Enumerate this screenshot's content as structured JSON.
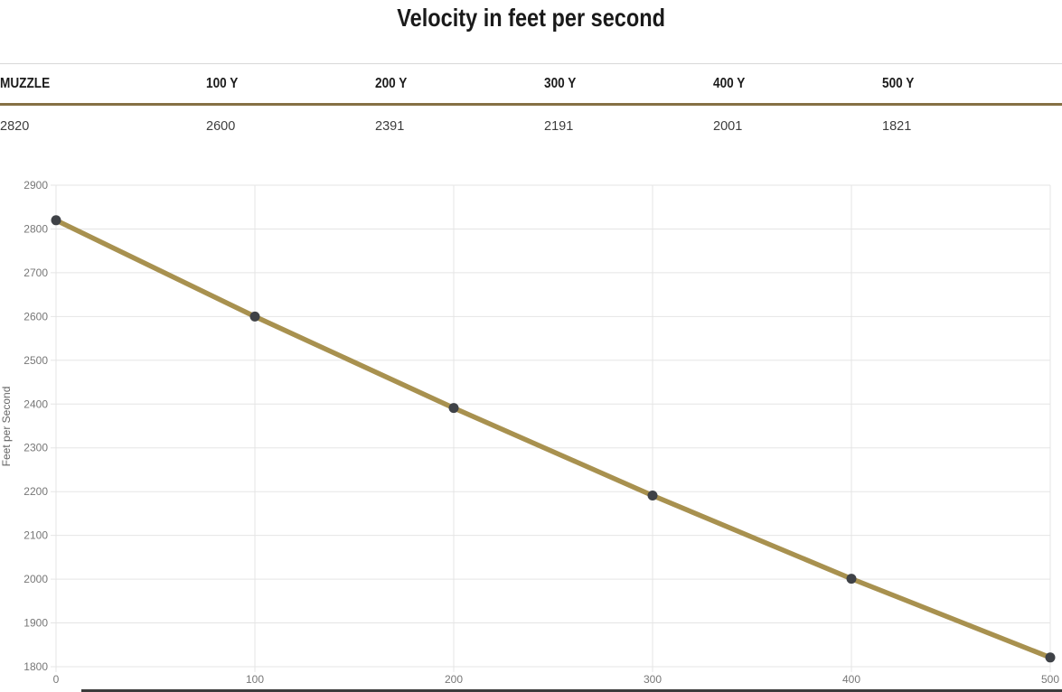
{
  "title": "Velocity in feet per second",
  "table": {
    "columns": [
      {
        "header": "MUZZLE",
        "value": "2820"
      },
      {
        "header": "100 Y",
        "value": "2600"
      },
      {
        "header": "200 Y",
        "value": "2391"
      },
      {
        "header": "300 Y",
        "value": "2191"
      },
      {
        "header": "400 Y",
        "value": "2001"
      },
      {
        "header": "500 Y",
        "value": "1821"
      }
    ]
  },
  "chart_data": {
    "type": "line",
    "title": "Velocity in feet per second",
    "series": [
      {
        "name": "Velocity",
        "x": [
          0,
          100,
          200,
          300,
          400,
          500
        ],
        "values": [
          2820,
          2600,
          2391,
          2191,
          2001,
          1821
        ]
      }
    ],
    "xlabel": "",
    "ylabel": "Feet per Second",
    "xticks": [
      0,
      100,
      200,
      300,
      400,
      500
    ],
    "ylim": [
      1800,
      2900
    ],
    "ytick_step": 100,
    "grid": true,
    "legend_position": "none",
    "colors": {
      "line": "#a8914f",
      "point": "#3f4247",
      "grid": "#e5e5e5",
      "tick_text": "#777777",
      "axis_title_text": "#666666",
      "table_divider": "#857044",
      "title_text": "#1a1a1a"
    }
  }
}
